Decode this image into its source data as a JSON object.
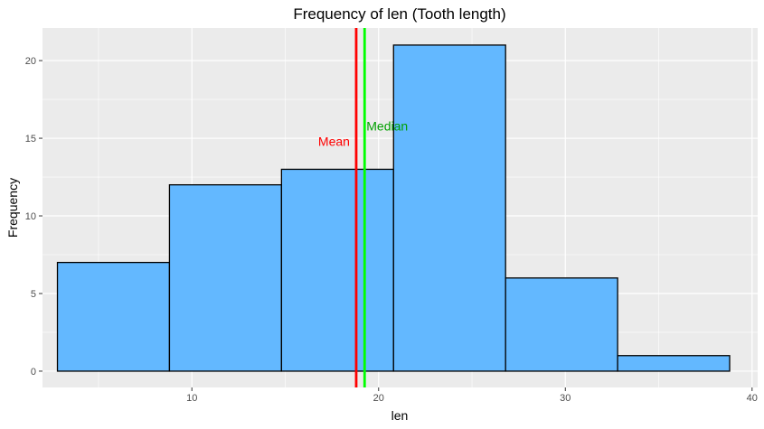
{
  "chart_data": {
    "type": "bar",
    "subtype": "histogram",
    "title": "Frequency of len (Tooth length)",
    "xlabel": "len",
    "ylabel": "Frequency",
    "xlim": [
      2.0,
      40.3
    ],
    "ylim": [
      -1.05,
      22.1
    ],
    "xticks": [
      10,
      20,
      30,
      40
    ],
    "yticks": [
      0,
      5,
      10,
      15,
      20
    ],
    "grid": true,
    "bins": [
      {
        "start": 2.8,
        "end": 8.8,
        "count": 7
      },
      {
        "start": 8.8,
        "end": 14.8,
        "count": 12
      },
      {
        "start": 14.8,
        "end": 20.8,
        "count": 13
      },
      {
        "start": 20.8,
        "end": 26.8,
        "count": 21
      },
      {
        "start": 26.8,
        "end": 32.8,
        "count": 6
      },
      {
        "start": 32.8,
        "end": 38.8,
        "count": 1
      }
    ],
    "bar_fill": "#63b8ff",
    "bar_outline": "#000000",
    "panel_background": "#ebebeb",
    "reference_lines": [
      {
        "label": "Mean",
        "value": 18.8,
        "color": "#ff0000",
        "label_y": 14.8,
        "label_side": "left"
      },
      {
        "label": "Median",
        "value": 19.25,
        "color": "#00ff00",
        "text_color": "#00a000",
        "label_y": 15.8,
        "label_side": "right"
      }
    ]
  }
}
